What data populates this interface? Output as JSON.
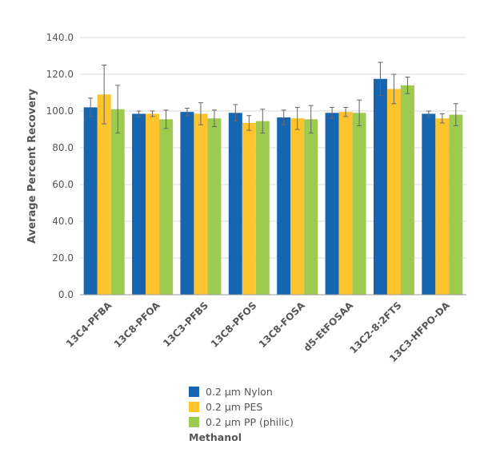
{
  "chart_data": {
    "type": "bar",
    "ylabel": "Average Percent Recovery",
    "xlabel": "",
    "ylim": [
      0,
      140
    ],
    "yticks": [
      0,
      20,
      40,
      60,
      80,
      100,
      120,
      140
    ],
    "ytick_labels": [
      "0.0",
      "20.0",
      "40.0",
      "60.0",
      "80.0",
      "100.0",
      "120.0",
      "140.0"
    ],
    "grid": true,
    "legend_position": "bottom",
    "categories": [
      "13C4-PFBA",
      "13C8-PFOA",
      "13C3-PFBS",
      "13C8-PFOS",
      "13C8-FOSA",
      "d5-EtFOSAA",
      "13C2-8:2FTS",
      "13C3-HFPO-DA"
    ],
    "series": [
      {
        "name": "0.2 µm Nylon",
        "color": "#1565b0",
        "values": [
          102.0,
          98.5,
          99.5,
          99.0,
          96.5,
          99.0,
          117.5,
          98.5
        ],
        "errors": [
          5.0,
          1.5,
          2.0,
          4.5,
          4.0,
          3.0,
          9.0,
          1.5
        ]
      },
      {
        "name": "0.2 µm PES",
        "color": "#fec42e",
        "values": [
          109.0,
          98.5,
          98.5,
          93.5,
          96.0,
          99.5,
          112.0,
          96.0
        ],
        "errors": [
          16.0,
          1.5,
          6.0,
          4.0,
          6.0,
          2.5,
          8.0,
          2.5
        ]
      },
      {
        "name": "0.2 µm PP (philic)",
        "color": "#9ccb4f",
        "values": [
          101.0,
          95.5,
          96.0,
          94.5,
          95.5,
          99.0,
          114.0,
          98.0
        ],
        "errors": [
          13.0,
          5.0,
          4.5,
          6.5,
          7.5,
          7.0,
          4.5,
          6.0
        ]
      }
    ]
  },
  "legend": {
    "title": "Methanol"
  }
}
